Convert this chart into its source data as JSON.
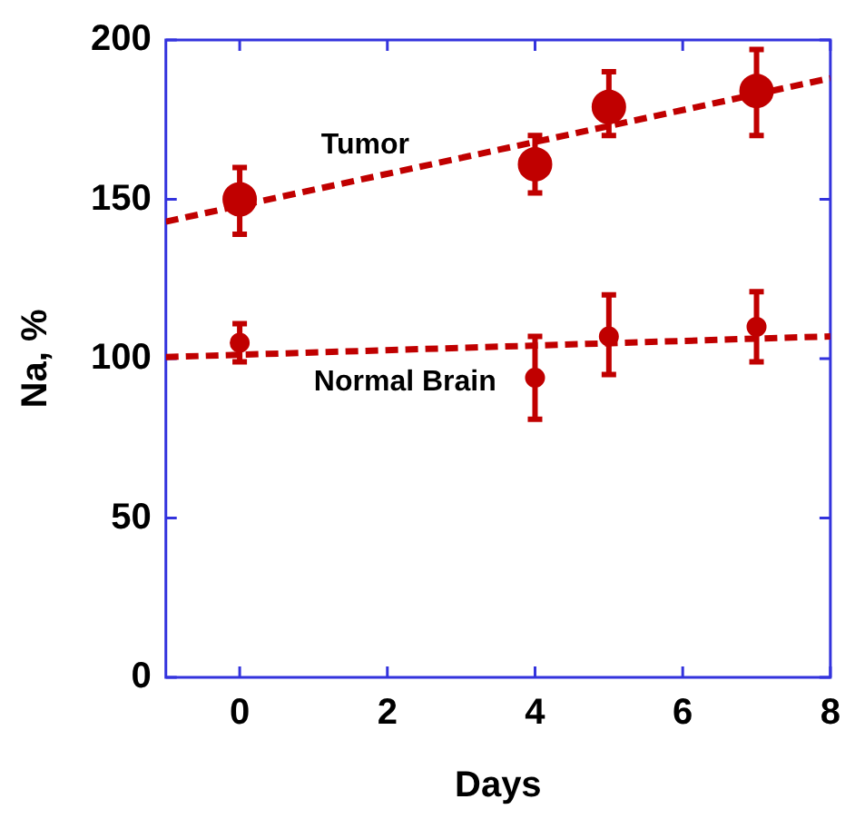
{
  "chart_data": {
    "type": "scatter",
    "xlabel": "Days",
    "ylabel": "Na, %",
    "xlim": [
      -1,
      8
    ],
    "xticks": [
      0,
      2,
      4,
      6,
      8
    ],
    "ylim": [
      0,
      200
    ],
    "yticks": [
      0,
      50,
      100,
      150,
      200
    ],
    "grid": false,
    "legend": false,
    "marker": "circle",
    "series": [
      {
        "color": "#c00000",
        "x": [
          0,
          4,
          5,
          7
        ],
        "values": [
          150,
          161,
          179,
          184
        ],
        "errors": [
          [
            139,
            160
          ],
          [
            152,
            170
          ],
          [
            170,
            190
          ],
          [
            170,
            197
          ]
        ]
      },
      {
        "color": "#c00000",
        "x": [
          0,
          4,
          5,
          7
        ],
        "values": [
          105,
          94,
          107,
          110
        ],
        "errors": [
          [
            99,
            111
          ],
          [
            81,
            107
          ],
          [
            95,
            120
          ],
          [
            99,
            121
          ]
        ]
      },
      {
        "type": "line",
        "name": "Tumor",
        "color": "#c00000",
        "line_style": "dashed",
        "marker": "none",
        "x": [
          -1,
          8
        ],
        "values": [
          143,
          188
        ]
      },
      {
        "type": "line",
        "name": "Normal Brain",
        "color": "#c00000",
        "line_style": "dashed",
        "marker": "none",
        "x": [
          -1,
          8
        ],
        "values": [
          100.5,
          107
        ]
      }
    ]
  }
}
